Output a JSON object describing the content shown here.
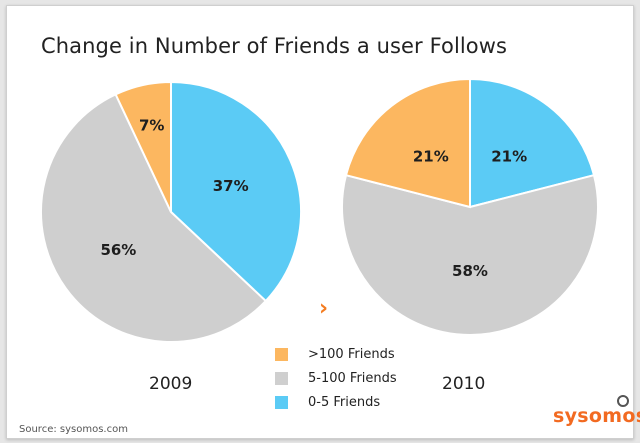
{
  "title": "Change in Number of Friends a user Follows",
  "colors": {
    "over_100": "#fcb760",
    "mid": "#cfcfcf",
    "low": "#5bcbf5",
    "accent": "#f47c20",
    "brand": "#f26a21"
  },
  "chart_data": [
    {
      "type": "pie",
      "label": "2009",
      "slices": [
        {
          "name": "0-5 Friends",
          "value": 37,
          "label": "37%",
          "color": "#5bcbf5"
        },
        {
          "name": "5-100 Friends",
          "value": 56,
          "label": "56%",
          "color": "#cfcfcf"
        },
        {
          "name": ">100 Friends",
          "value": 7,
          "label": "7%",
          "color": "#fcb760"
        }
      ]
    },
    {
      "type": "pie",
      "label": "2010",
      "slices": [
        {
          "name": "0-5 Friends",
          "value": 21,
          "label": "21%",
          "color": "#5bcbf5"
        },
        {
          "name": "5-100 Friends",
          "value": 58,
          "label": "58%",
          "color": "#cfcfcf"
        },
        {
          "name": ">100 Friends",
          "value": 21,
          "label": "21%",
          "color": "#fcb760"
        }
      ]
    }
  ],
  "legend": [
    {
      "label": ">100 Friends",
      "color": "#fcb760"
    },
    {
      "label": "5-100 Friends",
      "color": "#cfcfcf"
    },
    {
      "label": "0-5 Friends",
      "color": "#5bcbf5"
    }
  ],
  "arrow_icon": "chevron-right-icon",
  "arrow_glyph": "›",
  "source": "Source: sysomos.com",
  "brand": "sysomos"
}
